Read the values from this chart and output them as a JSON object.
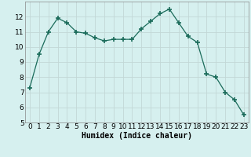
{
  "x": [
    0,
    1,
    2,
    3,
    4,
    5,
    6,
    7,
    8,
    9,
    10,
    11,
    12,
    13,
    14,
    15,
    16,
    17,
    18,
    19,
    20,
    21,
    22,
    23
  ],
  "y": [
    7.3,
    9.5,
    11.0,
    11.9,
    11.6,
    11.0,
    10.9,
    10.6,
    10.4,
    10.5,
    10.5,
    10.5,
    11.2,
    11.7,
    12.2,
    12.5,
    11.6,
    10.7,
    10.3,
    8.2,
    8.0,
    7.0,
    6.5,
    5.5
  ],
  "line_color": "#1a6b5a",
  "marker": "+",
  "marker_size": 4,
  "bg_color": "#d6f0ef",
  "grid_color": "#c2d8d6",
  "xlabel": "Humidex (Indice chaleur)",
  "xlim": [
    -0.5,
    23.5
  ],
  "ylim": [
    5,
    13
  ],
  "yticks": [
    5,
    6,
    7,
    8,
    9,
    10,
    11,
    12
  ],
  "xticks": [
    0,
    1,
    2,
    3,
    4,
    5,
    6,
    7,
    8,
    9,
    10,
    11,
    12,
    13,
    14,
    15,
    16,
    17,
    18,
    19,
    20,
    21,
    22,
    23
  ],
  "xlabel_fontsize": 7,
  "tick_fontsize": 6.5
}
